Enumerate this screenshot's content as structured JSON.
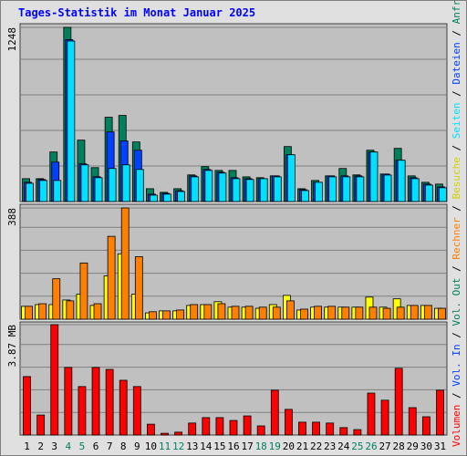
{
  "chart_data": [
    {
      "type": "bar",
      "title": "Tages-Statistik im Monat Januar 2025",
      "ylim": [
        0,
        1248
      ],
      "yticks": [
        1248
      ],
      "series": [
        {
          "name": "Anfragen",
          "color": "#00805c",
          "values": [
            164,
            164,
            355,
            1248,
            440,
            243,
            604,
            617,
            427,
            92,
            66,
            92,
            191,
            250,
            223,
            223,
            177,
            171,
            184,
            394,
            92,
            151,
            184,
            237,
            191,
            368,
            197,
            381,
            184,
            138,
            125
          ]
        },
        {
          "name": "Dateien",
          "color": "#0040ff",
          "values": [
            138,
            158,
            283,
            1160,
            270,
            178,
            499,
            434,
            368,
            53,
            59,
            78,
            184,
            230,
            210,
            171,
            164,
            164,
            184,
            335,
            85,
            138,
            184,
            184,
            184,
            355,
            197,
            296,
            171,
            125,
            105
          ]
        },
        {
          "name": "Seiten",
          "color": "#00e0ff",
          "values": [
            131,
            151,
            151,
            1150,
            263,
            171,
            237,
            263,
            230,
            46,
            53,
            72,
            177,
            223,
            204,
            164,
            158,
            164,
            177,
            335,
            79,
            138,
            177,
            177,
            177,
            355,
            190,
            296,
            164,
            118,
            99
          ]
        }
      ]
    },
    {
      "type": "bar",
      "ylim": [
        0,
        388
      ],
      "yticks": [
        388
      ],
      "series": [
        {
          "name": "Besuche",
          "color": "#ffff00",
          "values": [
            45,
            51,
            51,
            67,
            87,
            48,
            151,
            228,
            87,
            22,
            29,
            29,
            48,
            51,
            61,
            42,
            42,
            38,
            51,
            83,
            32,
            42,
            42,
            42,
            42,
            77,
            42,
            71,
            48,
            48,
            38
          ]
        },
        {
          "name": "Rechner",
          "color": "#ff8000",
          "values": [
            45,
            54,
            141,
            64,
            196,
            54,
            289,
            388,
            218,
            26,
            29,
            32,
            51,
            51,
            54,
            45,
            45,
            42,
            42,
            64,
            35,
            45,
            45,
            42,
            42,
            42,
            38,
            42,
            48,
            48,
            38
          ]
        }
      ]
    },
    {
      "type": "bar",
      "ylim": [
        0,
        3.87
      ],
      "yticks": [
        {
          "value": 3.87,
          "label": "3.87 MB"
        }
      ],
      "categories": [
        "1",
        "2",
        "3",
        "4",
        "5",
        "6",
        "7",
        "8",
        "9",
        "10",
        "11",
        "12",
        "13",
        "14",
        "15",
        "16",
        "17",
        "18",
        "19",
        "20",
        "21",
        "22",
        "23",
        "24",
        "25",
        "26",
        "27",
        "28",
        "29",
        "30",
        "31"
      ],
      "category_colors": [
        "#000000",
        "#000000",
        "#000000",
        "#008060",
        "#008060",
        "#000000",
        "#000000",
        "#000000",
        "#000000",
        "#000000",
        "#008060",
        "#008060",
        "#000000",
        "#000000",
        "#000000",
        "#000000",
        "#000000",
        "#008060",
        "#008060",
        "#000000",
        "#000000",
        "#000000",
        "#000000",
        "#000000",
        "#008060",
        "#008060",
        "#000000",
        "#000000",
        "#000000",
        "#000000",
        "#000000"
      ],
      "series": [
        {
          "name": "Volumen",
          "color": "#ff0000",
          "values": [
            2.05,
            0.7,
            3.87,
            2.37,
            1.7,
            2.37,
            2.3,
            1.92,
            1.7,
            0.38,
            0.06,
            0.1,
            0.42,
            0.61,
            0.61,
            0.51,
            0.67,
            0.32,
            1.57,
            0.9,
            0.45,
            0.45,
            0.42,
            0.26,
            0.19,
            1.47,
            1.22,
            2.34,
            0.96,
            0.64,
            1.57
          ]
        }
      ],
      "legend_extra": [
        {
          "name": "Vol. In",
          "color": "#0040ff"
        },
        {
          "name": "Vol. Out",
          "color": "#00805c"
        }
      ],
      "legend_separator": " / "
    }
  ]
}
